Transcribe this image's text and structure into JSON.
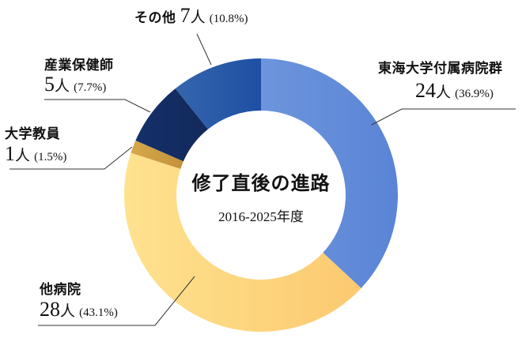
{
  "center": {
    "title": "修了直後の進路",
    "subtitle": "2016-2025年度"
  },
  "labels": {
    "tokai": {
      "name": "東海大学付属病院群",
      "count": "24",
      "unit": "人",
      "pct": "(36.9%)"
    },
    "other_hospital": {
      "name": "他病院",
      "count": "28",
      "unit": "人",
      "pct": "(43.1%)"
    },
    "university": {
      "name": "大学教員",
      "count": "1",
      "unit": "人",
      "pct": "(1.5%)"
    },
    "occupational": {
      "name": "産業保健師",
      "count": "5",
      "unit": "人",
      "pct": "(7.7%)"
    },
    "others": {
      "name": "その他",
      "count": "7",
      "unit": "人",
      "pct": "(10.8%)"
    }
  },
  "chart_data": {
    "type": "pie",
    "variant": "donut",
    "title": "修了直後の進路",
    "subtitle": "2016-2025年度",
    "categories": [
      "東海大学付属病院群",
      "他病院",
      "大学教員",
      "産業保健師",
      "その他"
    ],
    "values": [
      24,
      28,
      1,
      5,
      7
    ],
    "percentages": [
      36.9,
      43.1,
      1.5,
      7.7,
      10.8
    ],
    "unit": "人",
    "colors": [
      "#5b87d8",
      "#fdd37a",
      "#c99a3c",
      "#142f66",
      "#2456a8"
    ],
    "start_angle_deg": 0,
    "direction": "clockwise",
    "legend": "callout labels"
  }
}
